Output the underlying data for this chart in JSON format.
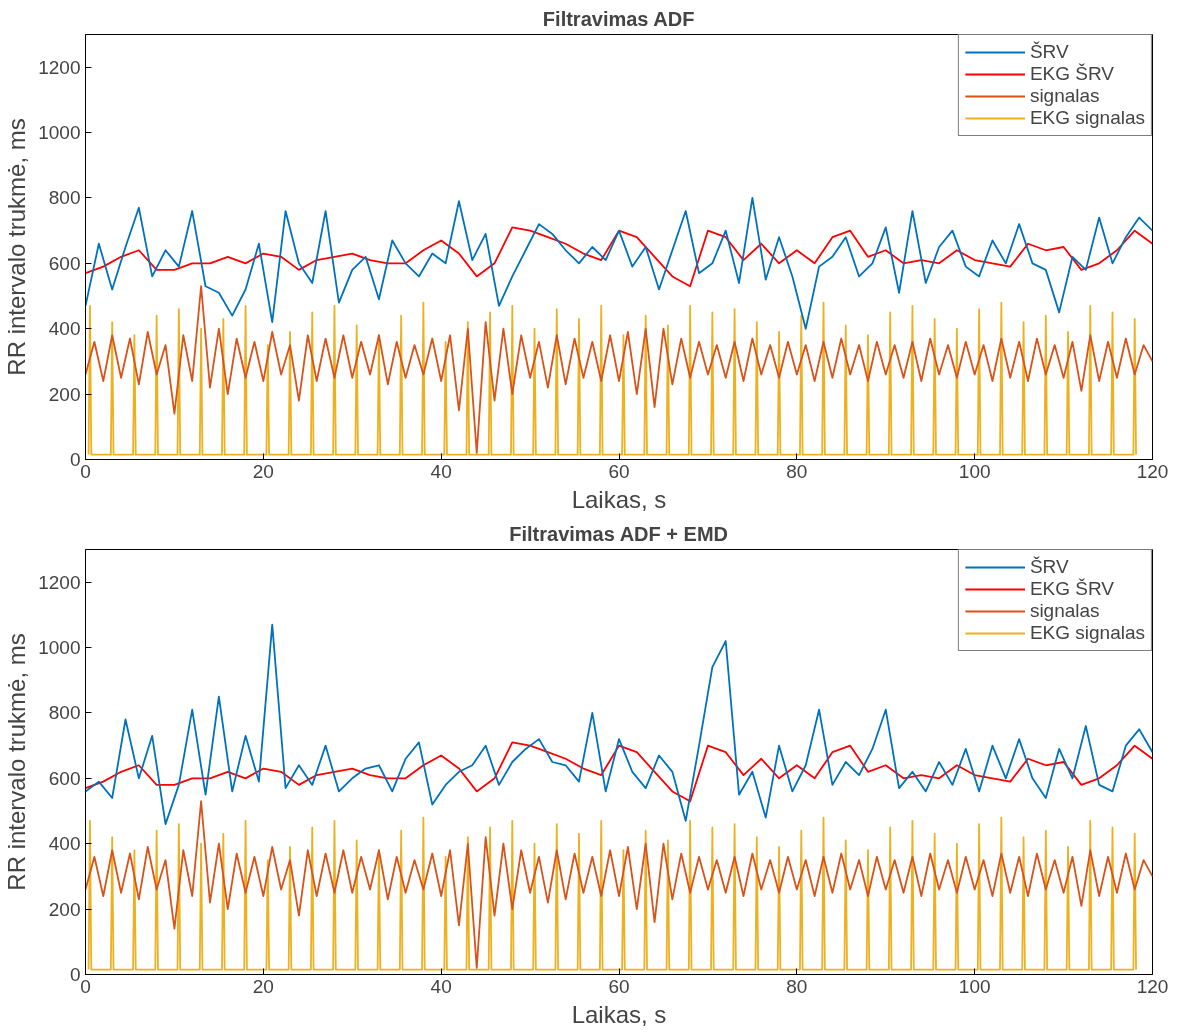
{
  "chart_data": [
    {
      "type": "line",
      "title": "Filtravimas ADF",
      "xlabel": "Laikas, s",
      "ylabel": "RR intervalo trukmė, ms",
      "xlim": [
        0,
        120
      ],
      "ylim": [
        0,
        1300
      ],
      "xticks": [
        0,
        20,
        40,
        60,
        80,
        100,
        120
      ],
      "yticks": [
        0,
        200,
        400,
        600,
        800,
        1000,
        1200
      ],
      "grid": false,
      "legend": "top right",
      "series": [
        {
          "name": "ŠRV",
          "color": "#0072bd",
          "x": [
            0,
            1.5,
            3,
            4.5,
            6,
            7.5,
            9,
            10.5,
            12,
            13.5,
            15,
            16.5,
            18,
            19.5,
            21,
            22.5,
            24,
            25.5,
            27,
            28.5,
            30,
            31.5,
            33,
            34.5,
            36,
            37.5,
            39,
            40.5,
            42,
            43.5,
            45,
            46.5,
            48,
            49.5,
            51,
            52.5,
            54,
            55.5,
            57,
            58.5,
            60,
            61.5,
            63,
            64.5,
            66,
            67.5,
            69,
            70.5,
            72,
            73.5,
            75,
            76.5,
            78,
            79.5,
            81,
            82.5,
            84,
            85.5,
            87,
            88.5,
            90,
            91.5,
            93,
            94.5,
            96,
            97.5,
            99,
            100.5,
            102,
            103.5,
            105,
            106.5,
            108,
            109.5,
            111,
            112.5,
            114,
            115.5,
            117,
            118.5,
            120
          ],
          "values": [
            470,
            660,
            520,
            650,
            770,
            560,
            640,
            590,
            760,
            530,
            510,
            440,
            520,
            660,
            420,
            760,
            600,
            540,
            760,
            480,
            580,
            620,
            490,
            670,
            600,
            560,
            630,
            600,
            790,
            610,
            690,
            470,
            560,
            640,
            720,
            690,
            640,
            600,
            650,
            610,
            700,
            590,
            650,
            520,
            640,
            760,
            570,
            600,
            700,
            540,
            800,
            550,
            680,
            560,
            400,
            590,
            620,
            680,
            560,
            600,
            710,
            510,
            760,
            540,
            650,
            700,
            590,
            560,
            670,
            600,
            720,
            600,
            580,
            450,
            620,
            580,
            740,
            600,
            680,
            740,
            700
          ]
        },
        {
          "name": "EKG ŠRV",
          "color": "#ff0000",
          "x": [
            0,
            2,
            4,
            6,
            8,
            10,
            12,
            14,
            16,
            18,
            20,
            22,
            24,
            26,
            28,
            30,
            32,
            34,
            36,
            38,
            40,
            42,
            44,
            46,
            48,
            50,
            52,
            54,
            56,
            58,
            60,
            62,
            64,
            66,
            68,
            70,
            72,
            74,
            76,
            78,
            80,
            82,
            84,
            86,
            88,
            90,
            92,
            94,
            96,
            98,
            100,
            102,
            104,
            106,
            108,
            110,
            112,
            114,
            116,
            118,
            120
          ],
          "values": [
            570,
            590,
            620,
            640,
            580,
            580,
            600,
            600,
            620,
            600,
            630,
            620,
            580,
            610,
            620,
            630,
            610,
            600,
            600,
            640,
            670,
            630,
            560,
            600,
            710,
            700,
            680,
            660,
            630,
            610,
            700,
            680,
            620,
            560,
            530,
            700,
            680,
            610,
            660,
            600,
            640,
            600,
            680,
            700,
            620,
            640,
            600,
            610,
            600,
            640,
            610,
            600,
            590,
            660,
            640,
            650,
            580,
            600,
            640,
            700,
            660
          ]
        },
        {
          "name": "signalas",
          "color": "#d95319",
          "x": [
            0,
            1,
            2,
            3,
            4,
            5,
            6,
            7,
            8,
            9,
            10,
            11,
            12,
            13,
            14,
            15,
            16,
            17,
            18,
            19,
            20,
            21,
            22,
            23,
            24,
            25,
            26,
            27,
            28,
            29,
            30,
            31,
            32,
            33,
            34,
            35,
            36,
            37,
            38,
            39,
            40,
            41,
            42,
            43,
            44,
            45,
            46,
            47,
            48,
            49,
            50,
            51,
            52,
            53,
            54,
            55,
            56,
            57,
            58,
            59,
            60,
            61,
            62,
            63,
            64,
            65,
            66,
            67,
            68,
            69,
            70,
            71,
            72,
            73,
            74,
            75,
            76,
            77,
            78,
            79,
            80,
            81,
            82,
            83,
            84,
            85,
            86,
            87,
            88,
            89,
            90,
            91,
            92,
            93,
            94,
            95,
            96,
            97,
            98,
            99,
            100,
            101,
            102,
            103,
            104,
            105,
            106,
            107,
            108,
            109,
            110,
            111,
            112,
            113,
            114,
            115,
            116,
            117,
            118,
            119,
            120
          ],
          "values": [
            260,
            360,
            240,
            380,
            250,
            370,
            230,
            390,
            260,
            350,
            140,
            380,
            240,
            530,
            220,
            400,
            200,
            370,
            250,
            360,
            240,
            390,
            260,
            350,
            180,
            380,
            240,
            370,
            250,
            380,
            250,
            360,
            260,
            380,
            230,
            360,
            250,
            350,
            260,
            370,
            240,
            380,
            150,
            400,
            20,
            420,
            180,
            400,
            200,
            380,
            250,
            360,
            220,
            380,
            230,
            370,
            250,
            360,
            240,
            380,
            240,
            390,
            200,
            400,
            160,
            400,
            230,
            370,
            250,
            360,
            260,
            350,
            250,
            360,
            240,
            370,
            260,
            350,
            250,
            360,
            260,
            350,
            240,
            360,
            250,
            370,
            260,
            350,
            240,
            360,
            260,
            350,
            250,
            360,
            240,
            370,
            260,
            350,
            250,
            360,
            260,
            350,
            240,
            370,
            250,
            360,
            240,
            370,
            260,
            350,
            250,
            360,
            210,
            380,
            240,
            360,
            250,
            370,
            260,
            350,
            300
          ]
        },
        {
          "name": "EKG signalas",
          "color": "#edb120",
          "x": [
            0.35,
            0.5,
            0.65,
            2.85,
            3,
            3.15,
            5.35,
            5.5,
            5.65,
            7.85,
            8,
            8.15,
            10.35,
            10.5,
            10.65,
            12.85,
            13,
            13.15,
            15.35,
            15.5,
            15.65,
            17.85,
            18,
            18.15,
            20.35,
            20.5,
            20.65,
            22.85,
            23,
            23.15,
            25.35,
            25.5,
            25.65,
            27.85,
            28,
            28.15,
            30.35,
            30.5,
            30.65,
            32.85,
            33,
            33.15,
            35.35,
            35.5,
            35.65,
            37.85,
            38,
            38.15,
            40.35,
            40.5,
            40.65,
            42.85,
            43,
            43.15,
            45.35,
            45.5,
            45.65,
            47.85,
            48,
            48.15,
            50.35,
            50.5,
            50.65,
            52.85,
            53,
            53.15,
            55.35,
            55.5,
            55.65,
            57.85,
            58,
            58.15,
            60.35,
            60.5,
            60.65,
            62.85,
            63,
            63.15,
            65.35,
            65.5,
            65.65,
            67.85,
            68,
            68.15,
            70.35,
            70.5,
            70.65,
            72.85,
            73,
            73.15,
            75.35,
            75.5,
            75.65,
            77.85,
            78,
            78.15,
            80.35,
            80.5,
            80.65,
            82.85,
            83,
            83.15,
            85.35,
            85.5,
            85.65,
            87.85,
            88,
            88.15,
            90.35,
            90.5,
            90.65,
            92.85,
            93,
            93.15,
            95.35,
            95.5,
            95.65,
            97.85,
            98,
            98.15,
            100.35,
            100.5,
            100.65,
            102.85,
            103,
            103.15,
            105.35,
            105.5,
            105.65,
            107.85,
            108,
            108.15,
            110.35,
            110.5,
            110.65,
            112.85,
            113,
            113.15,
            115.35,
            115.5,
            115.65,
            117.85,
            118,
            118.15
          ],
          "values": [
            15,
            470,
            15,
            15,
            420,
            15,
            15,
            380,
            15,
            15,
            440,
            15,
            15,
            460,
            15,
            15,
            400,
            15,
            15,
            430,
            15,
            15,
            470,
            15,
            15,
            350,
            15,
            15,
            390,
            15,
            15,
            450,
            15,
            15,
            470,
            15,
            15,
            410,
            15,
            15,
            380,
            15,
            15,
            440,
            15,
            15,
            480,
            15,
            15,
            360,
            15,
            15,
            420,
            15,
            15,
            450,
            15,
            15,
            470,
            15,
            15,
            400,
            15,
            15,
            460,
            15,
            15,
            430,
            15,
            15,
            470,
            15,
            15,
            380,
            15,
            15,
            440,
            15,
            15,
            410,
            15,
            15,
            470,
            15,
            15,
            450,
            15,
            15,
            460,
            15,
            15,
            420,
            15,
            15,
            390,
            15,
            15,
            440,
            15,
            15,
            480,
            15,
            15,
            410,
            15,
            15,
            380,
            15,
            15,
            450,
            15,
            15,
            470,
            15,
            15,
            430,
            15,
            15,
            400,
            15,
            15,
            460,
            15,
            15,
            480,
            15,
            15,
            420,
            15,
            15,
            440,
            15,
            15,
            390,
            15,
            15,
            470,
            15,
            15,
            450,
            15,
            15,
            430,
            15
          ]
        }
      ]
    },
    {
      "type": "line",
      "title": "Filtravimas ADF + EMD",
      "xlabel": "Laikas, s",
      "ylabel": "RR intervalo trukmė, ms",
      "xlim": [
        0,
        120
      ],
      "ylim": [
        0,
        1300
      ],
      "xticks": [
        0,
        20,
        40,
        60,
        80,
        100,
        120
      ],
      "yticks": [
        0,
        200,
        400,
        600,
        800,
        1000,
        1200
      ],
      "grid": false,
      "legend": "top right",
      "series": [
        {
          "name": "ŠRV",
          "color": "#0072bd",
          "x": [
            0,
            1.5,
            3,
            4.5,
            6,
            7.5,
            9,
            10.5,
            12,
            13.5,
            15,
            16.5,
            18,
            19.5,
            21,
            22.5,
            24,
            25.5,
            27,
            28.5,
            30,
            31.5,
            33,
            34.5,
            36,
            37.5,
            39,
            40.5,
            42,
            43.5,
            45,
            46.5,
            48,
            49.5,
            51,
            52.5,
            54,
            55.5,
            57,
            58.5,
            60,
            61.5,
            63,
            64.5,
            66,
            67.5,
            69,
            70.5,
            72,
            73.5,
            75,
            76.5,
            78,
            79.5,
            81,
            82.5,
            84,
            85.5,
            87,
            88.5,
            90,
            91.5,
            93,
            94.5,
            96,
            97.5,
            99,
            100.5,
            102,
            103.5,
            105,
            106.5,
            108,
            109.5,
            111,
            112.5,
            114,
            115.5,
            117,
            118.5,
            120
          ],
          "values": [
            560,
            590,
            540,
            780,
            600,
            730,
            460,
            580,
            810,
            550,
            850,
            560,
            730,
            590,
            1070,
            570,
            640,
            580,
            700,
            560,
            600,
            630,
            640,
            560,
            660,
            710,
            520,
            580,
            620,
            640,
            700,
            580,
            650,
            690,
            720,
            650,
            640,
            590,
            800,
            560,
            720,
            620,
            570,
            670,
            620,
            470,
            700,
            940,
            1020,
            550,
            620,
            480,
            700,
            560,
            640,
            810,
            580,
            650,
            610,
            690,
            810,
            570,
            620,
            560,
            650,
            580,
            690,
            560,
            700,
            600,
            720,
            600,
            540,
            690,
            600,
            760,
            580,
            560,
            700,
            750,
            680
          ]
        },
        {
          "name": "EKG ŠRV",
          "color": "#ff0000",
          "x": [
            0,
            2,
            4,
            6,
            8,
            10,
            12,
            14,
            16,
            18,
            20,
            22,
            24,
            26,
            28,
            30,
            32,
            34,
            36,
            38,
            40,
            42,
            44,
            46,
            48,
            50,
            52,
            54,
            56,
            58,
            60,
            62,
            64,
            66,
            68,
            70,
            72,
            74,
            76,
            78,
            80,
            82,
            84,
            86,
            88,
            90,
            92,
            94,
            96,
            98,
            100,
            102,
            104,
            106,
            108,
            110,
            112,
            114,
            116,
            118,
            120
          ],
          "values": [
            570,
            590,
            620,
            640,
            580,
            580,
            600,
            600,
            620,
            600,
            630,
            620,
            580,
            610,
            620,
            630,
            610,
            600,
            600,
            640,
            670,
            630,
            560,
            600,
            710,
            700,
            680,
            660,
            630,
            610,
            700,
            680,
            620,
            560,
            530,
            700,
            680,
            610,
            660,
            600,
            640,
            600,
            680,
            700,
            620,
            640,
            600,
            610,
            600,
            640,
            610,
            600,
            590,
            660,
            640,
            650,
            580,
            600,
            640,
            700,
            660
          ]
        },
        {
          "name": "signalas",
          "color": "#d95319",
          "x": [
            0,
            1,
            2,
            3,
            4,
            5,
            6,
            7,
            8,
            9,
            10,
            11,
            12,
            13,
            14,
            15,
            16,
            17,
            18,
            19,
            20,
            21,
            22,
            23,
            24,
            25,
            26,
            27,
            28,
            29,
            30,
            31,
            32,
            33,
            34,
            35,
            36,
            37,
            38,
            39,
            40,
            41,
            42,
            43,
            44,
            45,
            46,
            47,
            48,
            49,
            50,
            51,
            52,
            53,
            54,
            55,
            56,
            57,
            58,
            59,
            60,
            61,
            62,
            63,
            64,
            65,
            66,
            67,
            68,
            69,
            70,
            71,
            72,
            73,
            74,
            75,
            76,
            77,
            78,
            79,
            80,
            81,
            82,
            83,
            84,
            85,
            86,
            87,
            88,
            89,
            90,
            91,
            92,
            93,
            94,
            95,
            96,
            97,
            98,
            99,
            100,
            101,
            102,
            103,
            104,
            105,
            106,
            107,
            108,
            109,
            110,
            111,
            112,
            113,
            114,
            115,
            116,
            117,
            118,
            119,
            120
          ],
          "values": [
            260,
            360,
            240,
            380,
            250,
            370,
            230,
            390,
            260,
            350,
            140,
            380,
            240,
            530,
            220,
            400,
            200,
            370,
            250,
            360,
            240,
            390,
            260,
            350,
            180,
            380,
            240,
            370,
            250,
            380,
            250,
            360,
            260,
            380,
            230,
            360,
            250,
            350,
            260,
            370,
            240,
            380,
            150,
            400,
            20,
            420,
            180,
            400,
            200,
            380,
            250,
            360,
            220,
            380,
            230,
            370,
            250,
            360,
            240,
            380,
            240,
            390,
            200,
            400,
            160,
            400,
            230,
            370,
            250,
            360,
            260,
            350,
            250,
            360,
            240,
            370,
            260,
            350,
            250,
            360,
            260,
            350,
            240,
            360,
            250,
            370,
            260,
            350,
            240,
            360,
            260,
            350,
            250,
            360,
            240,
            370,
            260,
            350,
            250,
            360,
            260,
            350,
            240,
            370,
            250,
            360,
            240,
            370,
            260,
            350,
            250,
            360,
            210,
            380,
            240,
            360,
            250,
            370,
            260,
            350,
            300
          ]
        },
        {
          "name": "EKG signalas",
          "color": "#edb120",
          "x": [
            0.35,
            0.5,
            0.65,
            2.85,
            3,
            3.15,
            5.35,
            5.5,
            5.65,
            7.85,
            8,
            8.15,
            10.35,
            10.5,
            10.65,
            12.85,
            13,
            13.15,
            15.35,
            15.5,
            15.65,
            17.85,
            18,
            18.15,
            20.35,
            20.5,
            20.65,
            22.85,
            23,
            23.15,
            25.35,
            25.5,
            25.65,
            27.85,
            28,
            28.15,
            30.35,
            30.5,
            30.65,
            32.85,
            33,
            33.15,
            35.35,
            35.5,
            35.65,
            37.85,
            38,
            38.15,
            40.35,
            40.5,
            40.65,
            42.85,
            43,
            43.15,
            45.35,
            45.5,
            45.65,
            47.85,
            48,
            48.15,
            50.35,
            50.5,
            50.65,
            52.85,
            53,
            53.15,
            55.35,
            55.5,
            55.65,
            57.85,
            58,
            58.15,
            60.35,
            60.5,
            60.65,
            62.85,
            63,
            63.15,
            65.35,
            65.5,
            65.65,
            67.85,
            68,
            68.15,
            70.35,
            70.5,
            70.65,
            72.85,
            73,
            73.15,
            75.35,
            75.5,
            75.65,
            77.85,
            78,
            78.15,
            80.35,
            80.5,
            80.65,
            82.85,
            83,
            83.15,
            85.35,
            85.5,
            85.65,
            87.85,
            88,
            88.15,
            90.35,
            90.5,
            90.65,
            92.85,
            93,
            93.15,
            95.35,
            95.5,
            95.65,
            97.85,
            98,
            98.15,
            100.35,
            100.5,
            100.65,
            102.85,
            103,
            103.15,
            105.35,
            105.5,
            105.65,
            107.85,
            108,
            108.15,
            110.35,
            110.5,
            110.65,
            112.85,
            113,
            113.15,
            115.35,
            115.5,
            115.65,
            117.85,
            118,
            118.15
          ],
          "values": [
            15,
            470,
            15,
            15,
            420,
            15,
            15,
            380,
            15,
            15,
            440,
            15,
            15,
            460,
            15,
            15,
            400,
            15,
            15,
            430,
            15,
            15,
            470,
            15,
            15,
            350,
            15,
            15,
            390,
            15,
            15,
            450,
            15,
            15,
            470,
            15,
            15,
            410,
            15,
            15,
            380,
            15,
            15,
            440,
            15,
            15,
            480,
            15,
            15,
            360,
            15,
            15,
            420,
            15,
            15,
            450,
            15,
            15,
            470,
            15,
            15,
            400,
            15,
            15,
            460,
            15,
            15,
            430,
            15,
            15,
            470,
            15,
            15,
            380,
            15,
            15,
            440,
            15,
            15,
            410,
            15,
            15,
            470,
            15,
            15,
            450,
            15,
            15,
            460,
            15,
            15,
            420,
            15,
            15,
            390,
            15,
            15,
            440,
            15,
            15,
            480,
            15,
            15,
            410,
            15,
            15,
            380,
            15,
            15,
            450,
            15,
            15,
            470,
            15,
            15,
            430,
            15,
            15,
            400,
            15,
            15,
            460,
            15,
            15,
            480,
            15,
            15,
            420,
            15,
            15,
            440,
            15,
            15,
            390,
            15,
            15,
            470,
            15,
            15,
            450,
            15,
            15,
            430,
            15
          ]
        }
      ]
    }
  ]
}
